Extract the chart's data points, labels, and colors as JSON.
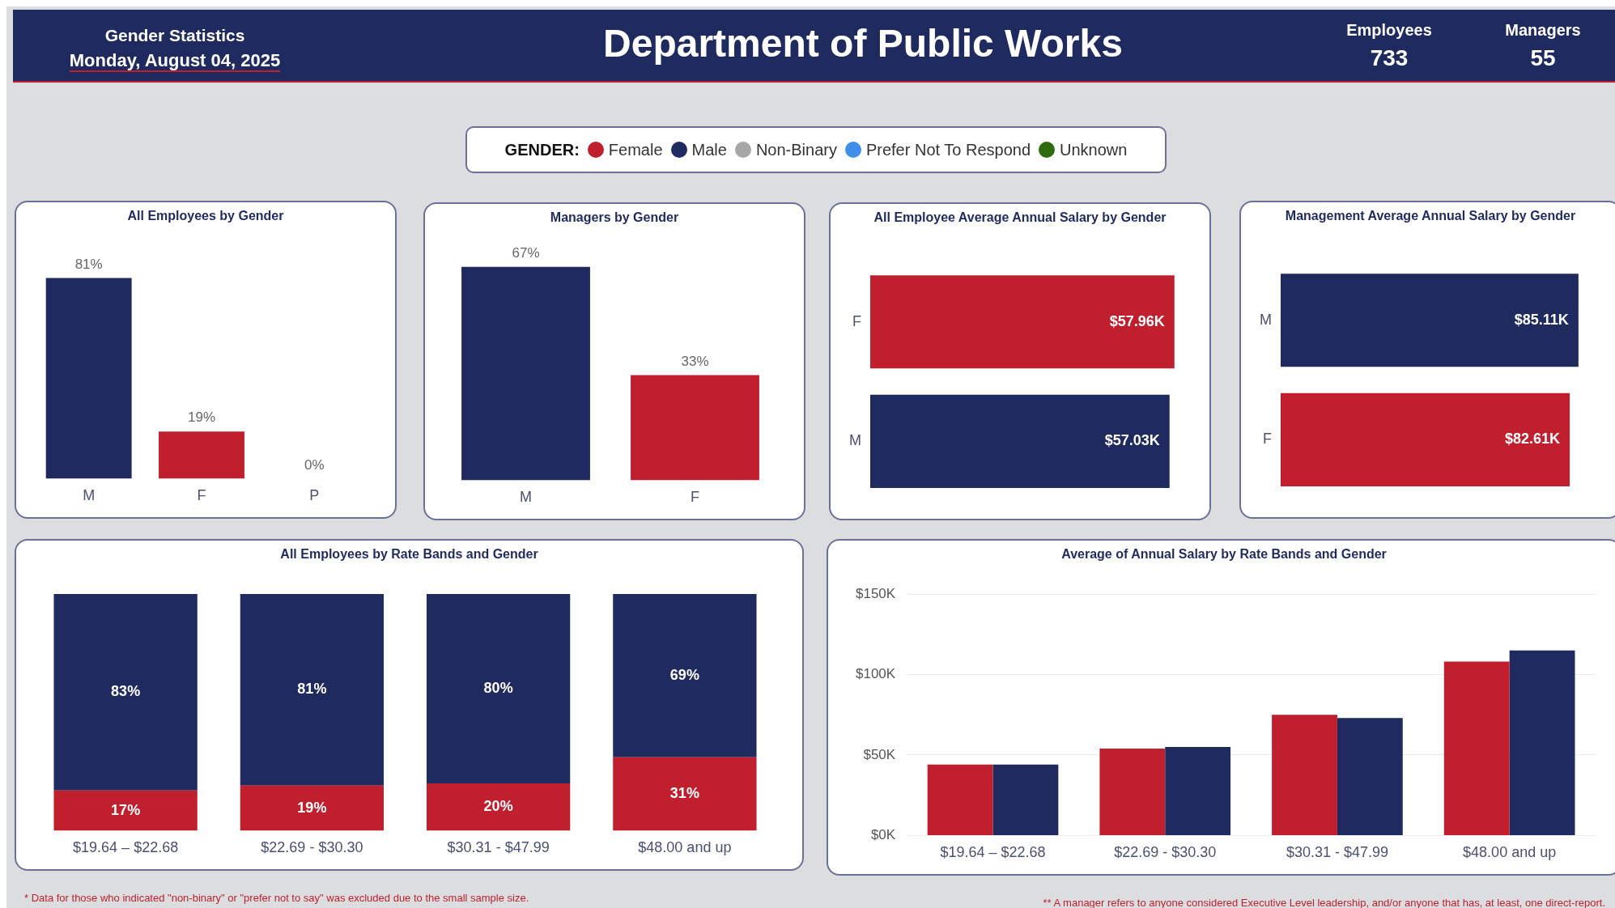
{
  "chart_data": [
    {
      "type": "other",
      "title": "Department of Public Works",
      "annotations": [
        "Gender Statistics",
        "Monday, August 04, 2025",
        "Employees",
        "733",
        "Managers",
        "55"
      ],
      "legend_title": "GENDER:",
      "categories": [
        "Female",
        "Male",
        "Non-Binary",
        "Prefer Not To Respond",
        "Unknown"
      ],
      "colors": [
        "#c01f2e",
        "#1f2a5e",
        "#a6a6a6",
        "#3f8fe8",
        "#2e6b0e"
      ]
    },
    {
      "type": "bar",
      "title": "All Employees by Gender",
      "categories": [
        "M",
        "F",
        "P"
      ],
      "values": [
        81,
        19,
        0
      ],
      "colors": [
        "#1f2a5e",
        "#c01f2e",
        "#8fbef0"
      ],
      "value_labels": [
        "81%",
        "19%",
        "0%"
      ],
      "tick_labels": "x"
    },
    {
      "type": "bar",
      "title": "Managers by Gender",
      "categories": [
        "M",
        "F"
      ],
      "values": [
        67,
        33
      ],
      "colors": [
        "#1f2a5e",
        "#c01f2e"
      ],
      "value_labels": [
        "67%",
        "33%"
      ],
      "tick_labels": "x"
    },
    {
      "type": "bar",
      "orientation": "horizontal",
      "title": "All Employee Average Annual Salary by Gender",
      "categories": [
        "F",
        "M"
      ],
      "values": [
        57.96,
        57.03
      ],
      "colors": [
        "#c01f2e",
        "#1f2a5e"
      ],
      "value_labels": [
        "$57.96K",
        "$57.03K"
      ],
      "tick_labels": "y"
    },
    {
      "type": "bar",
      "orientation": "horizontal",
      "title": "Management Average Annual Salary by Gender",
      "categories": [
        "M",
        "F"
      ],
      "values": [
        85.11,
        82.61
      ],
      "colors": [
        "#1f2a5e",
        "#c01f2e"
      ],
      "value_labels": [
        "$85.11K",
        "$82.61K"
      ],
      "tick_labels": "y"
    },
    {
      "type": "bar",
      "stacked": true,
      "title": "All Employees by Rate Bands and Gender",
      "categories": [
        "$19.64 – $22.68",
        "$22.69 - $30.30",
        "$30.31 - $47.99",
        "$48.00 and up"
      ],
      "series": [
        {
          "color": "#c01f2e",
          "values": [
            17,
            19,
            20,
            31
          ],
          "value_labels": [
            "17%",
            "19%",
            "20%",
            "31%"
          ]
        },
        {
          "color": "#1f2a5e",
          "values": [
            83,
            81,
            80,
            69
          ],
          "value_labels": [
            "83%",
            "81%",
            "80%",
            "69%"
          ]
        }
      ],
      "tick_labels": "x",
      "annotations": [
        "* Data for those who indicated \"non-binary\" or \"prefer not to say\" was excluded due to the small sample size."
      ]
    },
    {
      "type": "bar",
      "title": "Average of Annual Salary by Rate Bands and Gender",
      "categories": [
        "$19.64 – $22.68",
        "$22.69 - $30.30",
        "$30.31 - $47.99",
        "$48.00 and up"
      ],
      "series": [
        {
          "color": "#c01f2e",
          "values": [
            44,
            54,
            75,
            108
          ]
        },
        {
          "color": "#1f2a5e",
          "values": [
            44,
            55,
            73,
            115
          ]
        }
      ],
      "ylim": [
        0,
        150
      ],
      "yticks": [
        {
          "value": 0,
          "label": "$0K"
        },
        {
          "value": 50,
          "label": "$50K"
        },
        {
          "value": 100,
          "label": "$100K"
        },
        {
          "value": 150,
          "label": "$150K"
        }
      ],
      "grid": "y",
      "annotations": [
        "** A manager refers to anyone considered Executive Level leadership, and/or anyone that has, at least, one direct-report."
      ]
    }
  ]
}
